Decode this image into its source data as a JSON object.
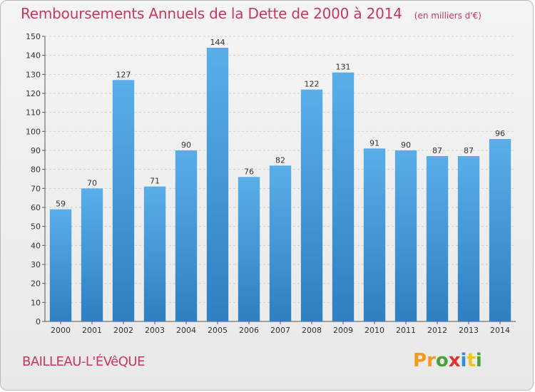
{
  "header": {
    "title": "Remboursements Annuels de la Dette de 2000 à 2014",
    "unit": "(en milliers d'€)"
  },
  "footer": {
    "town": "BAILLEAU-L'ÉVêQUE",
    "logo_letters": [
      "P",
      "r",
      "o",
      "x",
      "i",
      "t",
      "i"
    ]
  },
  "colors": {
    "title": "#c8375c",
    "bar_top": "#5aaee8",
    "bar_bottom": "#2f7fc1",
    "logo": [
      "#f39a1e",
      "#f39a1e",
      "#4aa13b",
      "#e2322c",
      "#2f8fd8",
      "#f3c21e",
      "#4aa13b"
    ]
  },
  "chart_data": {
    "type": "bar",
    "categories": [
      "2000",
      "2001",
      "2002",
      "2003",
      "2004",
      "2005",
      "2006",
      "2007",
      "2008",
      "2009",
      "2010",
      "2011",
      "2012",
      "2013",
      "2014"
    ],
    "values": [
      59,
      70,
      127,
      71,
      90,
      144,
      76,
      82,
      122,
      131,
      91,
      90,
      87,
      87,
      96
    ],
    "ylim": [
      0,
      150
    ],
    "yticks": [
      0,
      10,
      20,
      30,
      40,
      50,
      60,
      70,
      80,
      90,
      100,
      110,
      120,
      130,
      140,
      150
    ],
    "grid": true,
    "xlabel": "",
    "ylabel": ""
  }
}
